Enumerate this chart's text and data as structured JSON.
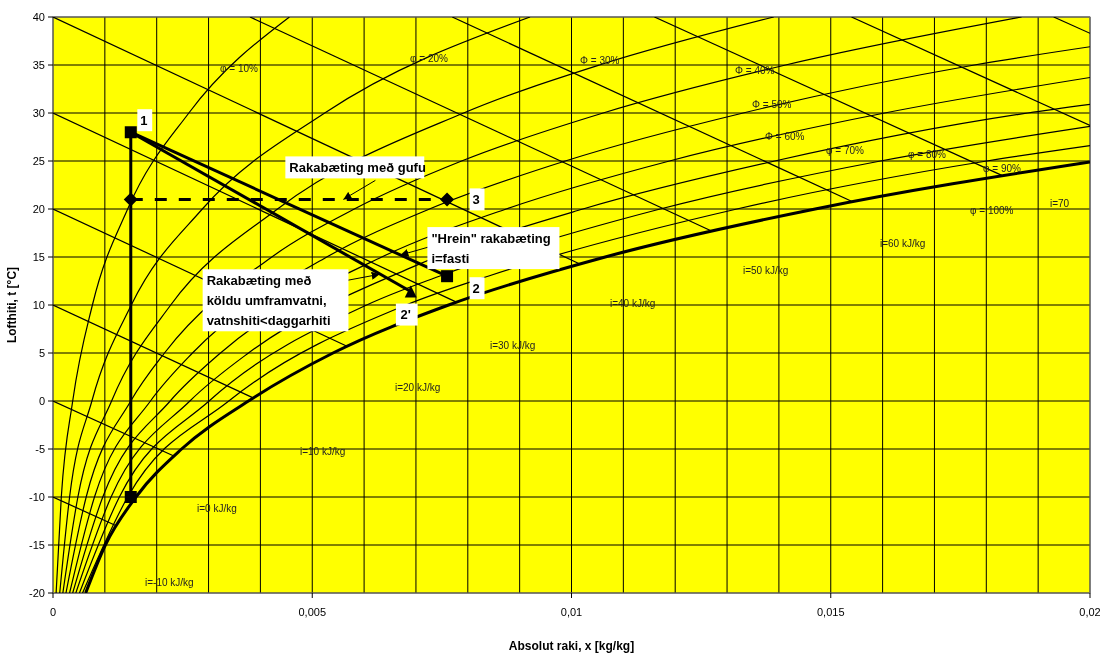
{
  "chart_data": {
    "type": "line",
    "xlabel": "Absolut raki, x [kg/kg]",
    "ylabel": "Lofthiti, t [°C]",
    "color": "#000000",
    "grid": true,
    "xlim": [
      0,
      0.02
    ],
    "ylim": [
      -20,
      40
    ],
    "xticks": [
      {
        "value": 0,
        "label": "0"
      },
      {
        "value": 0.001,
        "label": null
      },
      {
        "value": 0.002,
        "label": null
      },
      {
        "value": 0.003,
        "label": null
      },
      {
        "value": 0.004,
        "label": null
      },
      {
        "value": 0.005,
        "label": "0,005"
      },
      {
        "value": 0.006,
        "label": null
      },
      {
        "value": 0.007,
        "label": null
      },
      {
        "value": 0.008,
        "label": null
      },
      {
        "value": 0.009,
        "label": null
      },
      {
        "value": 0.01,
        "label": "0,01"
      },
      {
        "value": 0.011,
        "label": null
      },
      {
        "value": 0.012,
        "label": null
      },
      {
        "value": 0.013,
        "label": null
      },
      {
        "value": 0.014,
        "label": null
      },
      {
        "value": 0.015,
        "label": "0,015"
      },
      {
        "value": 0.016,
        "label": null
      },
      {
        "value": 0.017,
        "label": null
      },
      {
        "value": 0.018,
        "label": null
      },
      {
        "value": 0.019,
        "label": null
      },
      {
        "value": 0.02,
        "label": "0,02"
      }
    ],
    "yticks": [
      -20,
      -15,
      -10,
      -5,
      0,
      5,
      10,
      15,
      20,
      25,
      30,
      35,
      40
    ],
    "series": [
      {
        "x": [
          0,
          0.00122
        ],
        "values": [
          -10,
          -13
        ]
      },
      {
        "x": [
          0,
          0.00232
        ],
        "values": [
          0,
          -5.7
        ]
      },
      {
        "x": [
          0,
          0.00387
        ],
        "values": [
          10,
          0.3
        ]
      },
      {
        "x": [
          0,
          0.00567
        ],
        "values": [
          20,
          5.7
        ]
      },
      {
        "x": [
          0,
          0.00778
        ],
        "values": [
          30,
          10.3
        ]
      },
      {
        "x": [
          0,
          0.01015
        ],
        "values": [
          40,
          14.3
        ]
      },
      {
        "x": [
          0.0038,
          0.0127
        ],
        "values": [
          40,
          17.7
        ]
      },
      {
        "x": [
          0.0077,
          0.0154
        ],
        "values": [
          40,
          20.8
        ]
      },
      {
        "x": [
          0.0116,
          0.0183
        ],
        "values": [
          40,
          23.5
        ]
      },
      {
        "x": [
          0.0154,
          0.02
        ],
        "values": [
          40,
          28.7
        ]
      },
      {
        "x": [
          0.0193,
          0.02
        ],
        "values": [
          40,
          38.3
        ]
      },
      {
        "x": [
          6e-05,
          0.00016,
          0.00038,
          0.00076,
          0.00144,
          0.00262,
          0.00456
        ],
        "values": [
          -20,
          -10,
          0,
          10,
          20,
          30,
          40
        ]
      },
      {
        "x": [
          0.00013,
          0.00032,
          0.00075,
          0.00151,
          0.00288,
          0.00524,
          0.0092
        ],
        "values": [
          -20,
          -10,
          0,
          10,
          20,
          30,
          40
        ]
      },
      {
        "x": [
          0.00019,
          0.00048,
          0.00113,
          0.00227,
          0.00433,
          0.00792,
          0.01054,
          0.0139
        ],
        "values": [
          -20,
          -10,
          0,
          10,
          20,
          30,
          35,
          40
        ]
      },
      {
        "x": [
          0.00025,
          0.00064,
          0.0015,
          0.00215,
          0.00422,
          0.00581,
          0.00788,
          0.01061,
          0.01413,
          0.01868
        ],
        "values": [
          -20,
          -10,
          0,
          5,
          15,
          20,
          25,
          30,
          35,
          40
        ]
      },
      {
        "x": [
          0.00032,
          0.0008,
          0.00188,
          0.00269,
          0.00528,
          0.00726,
          0.00988,
          0.01331,
          0.01777,
          0.02
        ],
        "values": [
          -20,
          -10,
          0,
          5,
          15,
          20,
          25,
          30,
          35,
          36.9
        ]
      },
      {
        "x": [
          0.00038,
          0.00096,
          0.00226,
          0.00323,
          0.00634,
          0.00874,
          0.01189,
          0.01604,
          0.02
        ],
        "values": [
          -20,
          -10,
          0,
          5,
          15,
          20,
          25,
          30,
          33.7
        ]
      },
      {
        "x": [
          0.00044,
          0.00112,
          0.00264,
          0.00377,
          0.00695,
          0.01022,
          0.01392,
          0.0188,
          0.02
        ],
        "values": [
          -20,
          -10,
          0,
          5,
          14,
          20,
          25,
          30,
          30.9
        ]
      },
      {
        "x": [
          0.00051,
          0.00128,
          0.00301,
          0.00605,
          0.00745,
          0.01171,
          0.01596,
          0.02
        ],
        "values": [
          -20,
          -10,
          0,
          10,
          13,
          20,
          25,
          28.6
        ]
      },
      {
        "x": [
          0.00057,
          0.00144,
          0.00339,
          0.00681,
          0.00839,
          0.01319,
          0.01801,
          0.02
        ],
        "values": [
          -20,
          -10,
          0,
          10,
          13,
          20,
          25,
          26.6
        ]
      },
      {
        "marker": "none",
        "x": [
          0.00063,
          0.00101,
          0.0016,
          0.00248,
          0.00377,
          0.0054,
          0.00763,
          0.01065,
          0.0147,
          0.02
        ],
        "values": [
          -20,
          -15,
          -10,
          -5,
          0,
          5,
          10,
          15,
          20,
          24.9
        ]
      },
      {
        "marker": "none",
        "x": [
          0.0015,
          0.0015
        ],
        "values": [
          28,
          -10
        ]
      },
      {
        "marker": "none",
        "x": [
          0.0015,
          0.0076
        ],
        "values": [
          28,
          13
        ]
      },
      {
        "marker": "none",
        "x": [
          0.0015,
          0.0069
        ],
        "values": [
          28,
          11.4
        ]
      },
      {
        "marker": "none",
        "line_style": "dashed",
        "x": [
          0.0015,
          0.0076
        ],
        "values": [
          21,
          21
        ]
      },
      {
        "type": "scatter",
        "marker": "square",
        "x": [
          0.0015,
          0.0076,
          0.0015
        ],
        "values": [
          28,
          13,
          -10
        ]
      },
      {
        "type": "scatter",
        "marker": "diamond",
        "x": [
          0.0015,
          0.0076
        ],
        "values": [
          21,
          21
        ]
      },
      {
        "type": "scatter",
        "marker": "triangle",
        "x": [
          0.0069
        ],
        "values": [
          11.4
        ]
      }
    ],
    "annotations": [
      "φ = 10%",
      "φ = 20%",
      "Φ = 30%",
      "Φ = 40%",
      "Φ = 50%",
      "Φ = 60%",
      "φ = 70%",
      "φ = 80%",
      "φ = 90%",
      "φ = 100%",
      "i=70",
      "i=60 kJ/kg",
      "i=50 kJ/kg",
      "i=40 kJ/kg",
      "i=30 kJ/kg",
      "i=20 kJ/kg",
      "i=10 kJ/kg",
      "i=0 kJ/kg",
      "i=-10 kJ/kg",
      {
        "text": "1",
        "x": 0.0015,
        "y": 28
      },
      {
        "text": "2",
        "x": 0.0076,
        "y": 13
      },
      {
        "text": "3",
        "x": 0.0076,
        "y": 21
      },
      {
        "text": "2'",
        "x": 0.0069,
        "y": 11.4
      },
      {
        "text": "Rakabæting með gufu",
        "x": 0.0056,
        "y": 21
      },
      {
        "text": "\"Hrein\" rakabæting\ni=fasti",
        "x": 0.0067,
        "y": 15.2
      },
      {
        "text": "Rakabæting með\nköldu umframvatni,\nvatnshiti<daggarhiti",
        "x": 0.0063,
        "y": 13.2
      }
    ]
  }
}
